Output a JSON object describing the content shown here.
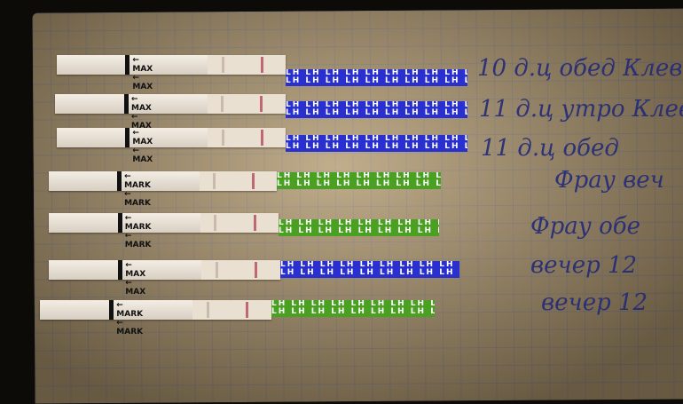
{
  "strips": [
    {
      "label": "MAX",
      "handle": "LH LH LH LH LH LH LH LH LH LH",
      "handle_color": "#2a2fd0"
    },
    {
      "label": "MAX",
      "handle": "LH LH LH LH LH LH LH LH LH LH",
      "handle_color": "#2a2fd0"
    },
    {
      "label": "MAX",
      "handle": "LH LH LH LH LH LH LH LH LH LH",
      "handle_color": "#2a2fd0"
    },
    {
      "label": "MARK",
      "handle": "LH LH LH LH LH LH LH LH LH",
      "handle_color": "#4aa020"
    },
    {
      "label": "MARK",
      "handle": "LH LH LH LH LH LH LH LH LH",
      "handle_color": "#4aa020"
    },
    {
      "label": "MAX",
      "handle": "LH LH LH LH LH LH LH LH LH LH",
      "handle_color": "#2a2fd0"
    },
    {
      "label": "MARK",
      "handle": "LH LH LH LH LH LH LH LH LH",
      "handle_color": "#4aa020"
    }
  ],
  "handwriting": [
    "10 д.ц обед Клев",
    "11 д.ц утро Клев",
    "11 д.ц обед",
    "Фрау веч",
    "Фрау обе",
    "вечер 12",
    "вечер 12"
  ]
}
